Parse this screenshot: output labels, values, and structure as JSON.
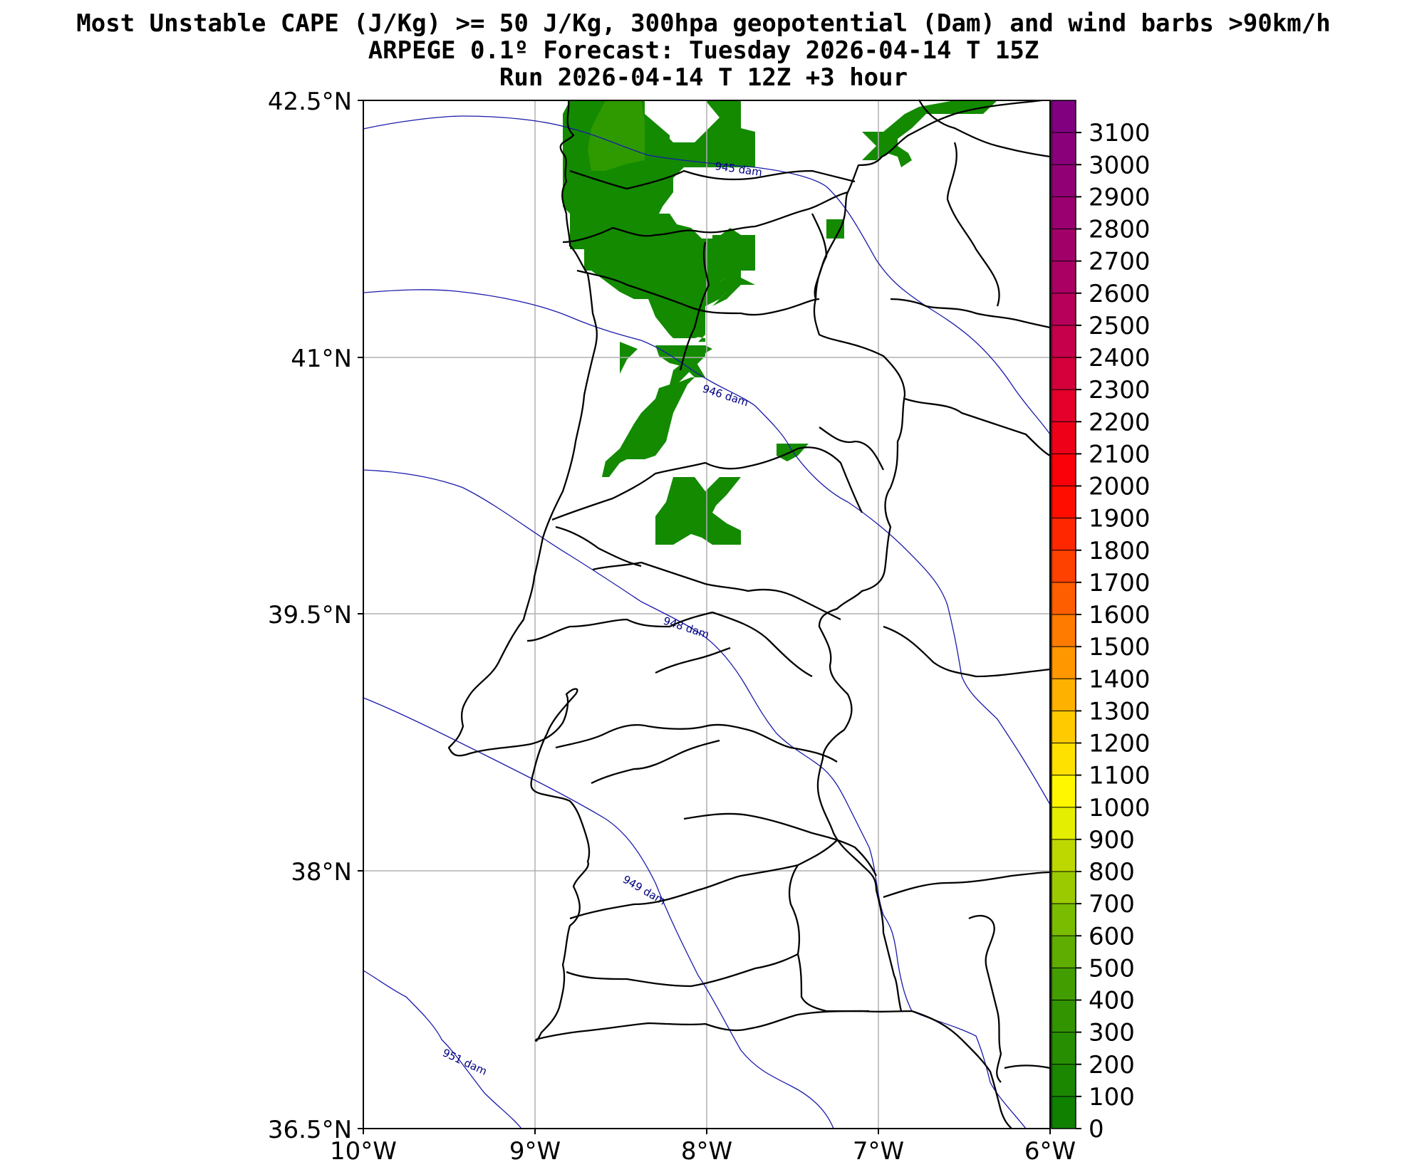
{
  "title": {
    "line1": "Most Unstable CAPE (J/Kg) >= 50 J/Kg, 300hpa geopotential (Dam) and wind barbs >90km/h",
    "line2": "ARPEGE 0.1º Forecast: Tuesday 2026-04-14 T 15Z",
    "line3": "Run 2026-04-14 T 12Z +3 hour"
  },
  "axes": {
    "lat_ticks": [
      "42.5°N",
      "41°N",
      "39.5°N",
      "38°N",
      "36.5°N"
    ],
    "lon_ticks": [
      "10°W",
      "9°W",
      "8°W",
      "7°W",
      "6°W"
    ]
  },
  "colorbar": {
    "labels": [
      "0",
      "100",
      "200",
      "300",
      "400",
      "500",
      "600",
      "700",
      "800",
      "900",
      "1000",
      "1100",
      "1200",
      "1300",
      "1400",
      "1500",
      "1600",
      "1700",
      "1800",
      "1900",
      "2000",
      "2100",
      "2200",
      "2300",
      "2400",
      "2500",
      "2600",
      "2700",
      "2800",
      "2900",
      "3000",
      "3100"
    ]
  },
  "contours": [
    {
      "label": "945 dam"
    },
    {
      "label": "946 dam"
    },
    {
      "label": "948 dam"
    },
    {
      "label": "949 dam"
    },
    {
      "label": "951 dam"
    }
  ],
  "colors": {
    "cape_low": "#138a00",
    "cape_mid": "#2e9a00",
    "contour": "#1a1aaa",
    "grid": "#b0b0b0"
  }
}
